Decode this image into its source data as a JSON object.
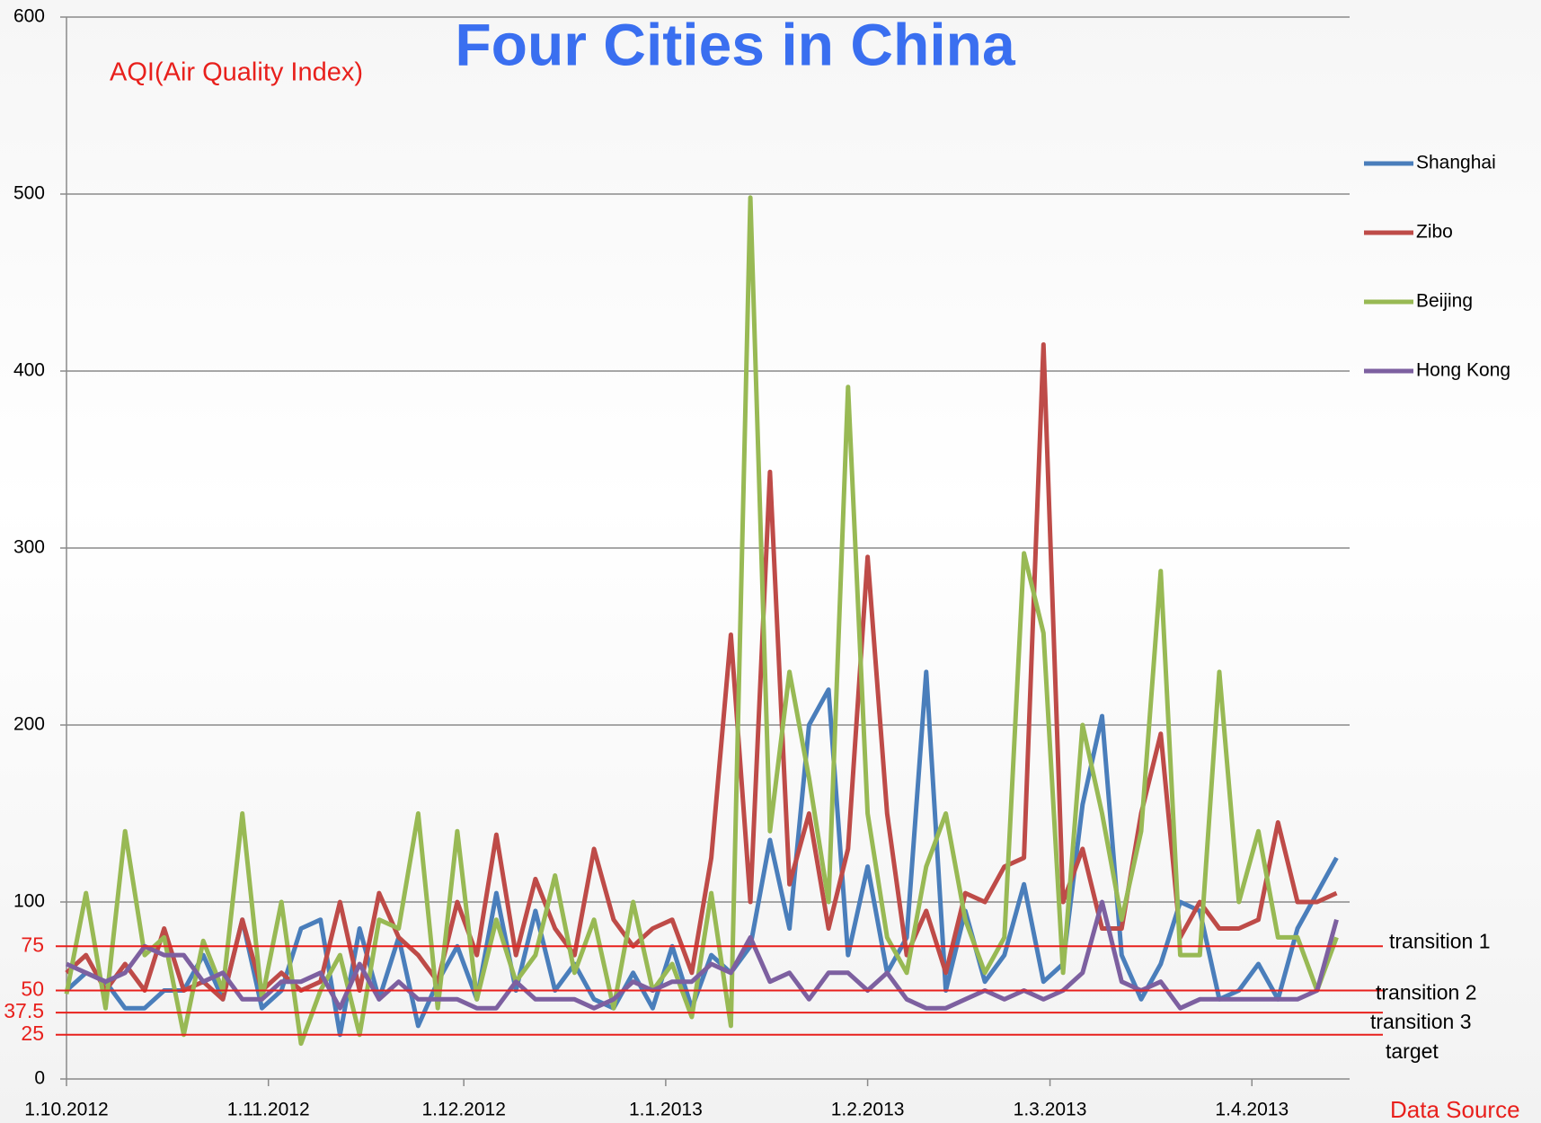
{
  "chart_data": {
    "type": "line",
    "title": "Four Cities in China",
    "y_label": "AQI(Air Quality Index)",
    "annotation": "Data Source",
    "x": [
      "1.10.2012",
      "4.10.2012",
      "7.10.2012",
      "10.10.2012",
      "13.10.2012",
      "16.10.2012",
      "19.10.2012",
      "22.10.2012",
      "25.10.2012",
      "28.10.2012",
      "31.10.2012",
      "3.11.2012",
      "6.11.2012",
      "9.11.2012",
      "12.11.2012",
      "15.11.2012",
      "18.11.2012",
      "21.11.2012",
      "24.11.2012",
      "27.11.2012",
      "30.11.2012",
      "3.12.2012",
      "6.12.2012",
      "9.12.2012",
      "12.12.2012",
      "15.12.2012",
      "18.12.2012",
      "21.12.2012",
      "24.12.2012",
      "27.12.2012",
      "30.12.2012",
      "2.1.2013",
      "5.1.2013",
      "8.1.2013",
      "11.1.2013",
      "14.1.2013",
      "17.1.2013",
      "20.1.2013",
      "23.1.2013",
      "26.1.2013",
      "29.1.2013",
      "1.2.2013",
      "4.2.2013",
      "7.2.2013",
      "10.2.2013",
      "13.2.2013",
      "16.2.2013",
      "19.2.2013",
      "22.2.2013",
      "25.2.2013",
      "28.2.2013",
      "3.3.2013",
      "6.3.2013",
      "9.3.2013",
      "12.3.2013",
      "15.3.2013",
      "18.3.2013",
      "21.3.2013",
      "24.3.2013",
      "27.3.2013",
      "30.3.2013",
      "2.4.2013",
      "5.4.2013",
      "8.4.2013",
      "11.4.2013",
      "14.4.2013"
    ],
    "series": [
      {
        "name": "Shanghai",
        "color": "#4a7ebb",
        "values": [
          50,
          60,
          55,
          40,
          40,
          50,
          50,
          70,
          45,
          90,
          40,
          50,
          85,
          90,
          25,
          85,
          45,
          80,
          30,
          55,
          75,
          45,
          105,
          50,
          95,
          50,
          65,
          45,
          40,
          60,
          40,
          75,
          40,
          70,
          60,
          75,
          135,
          85,
          200,
          220,
          70,
          120,
          60,
          80,
          230,
          50,
          95,
          55,
          70,
          110,
          55,
          65,
          155,
          205,
          70,
          45,
          65,
          100,
          95,
          45,
          50,
          65,
          45,
          85,
          105,
          125
        ]
      },
      {
        "name": "Zibo",
        "color": "#be4b48",
        "values": [
          60,
          70,
          50,
          65,
          50,
          85,
          50,
          55,
          45,
          90,
          50,
          60,
          50,
          55,
          100,
          50,
          105,
          80,
          70,
          55,
          100,
          70,
          138,
          70,
          113,
          85,
          70,
          130,
          90,
          75,
          85,
          90,
          60,
          125,
          251,
          100,
          343,
          110,
          150,
          85,
          130,
          295,
          150,
          70,
          95,
          60,
          105,
          100,
          120,
          125,
          415,
          100,
          130,
          85,
          85,
          150,
          195,
          80,
          100,
          85,
          85,
          90,
          145,
          100,
          100,
          105
        ]
      },
      {
        "name": "Beijing",
        "color": "#98b954",
        "values": [
          48,
          105,
          40,
          140,
          70,
          80,
          25,
          78,
          50,
          150,
          45,
          100,
          20,
          50,
          70,
          25,
          90,
          85,
          150,
          40,
          140,
          45,
          90,
          55,
          70,
          115,
          60,
          90,
          40,
          100,
          50,
          65,
          35,
          105,
          30,
          498,
          140,
          230,
          170,
          100,
          391,
          150,
          80,
          60,
          120,
          150,
          90,
          60,
          80,
          297,
          252,
          60,
          200,
          150,
          90,
          140,
          287,
          70,
          70,
          230,
          100,
          140,
          80,
          80,
          50,
          80
        ]
      },
      {
        "name": "Hong Kong",
        "color": "#7d60a0",
        "values": [
          65,
          60,
          55,
          60,
          75,
          70,
          70,
          55,
          60,
          45,
          45,
          55,
          55,
          60,
          40,
          65,
          45,
          55,
          45,
          45,
          45,
          40,
          40,
          55,
          45,
          45,
          45,
          40,
          45,
          55,
          50,
          55,
          55,
          65,
          60,
          80,
          55,
          60,
          45,
          60,
          60,
          50,
          60,
          45,
          40,
          40,
          45,
          50,
          45,
          50,
          45,
          50,
          60,
          100,
          55,
          50,
          55,
          40,
          45,
          45,
          45,
          45,
          45,
          45,
          50,
          90
        ]
      }
    ],
    "xlim": [
      "1.10.2012",
      "16.4.2013"
    ],
    "xticks": [
      "1.10.2012",
      "1.11.2012",
      "1.12.2012",
      "1.1.2013",
      "1.2.2013",
      "1.3.2013",
      "1.4.2013"
    ],
    "ylim": [
      0,
      600
    ],
    "yticks": [
      0,
      100,
      200,
      300,
      400,
      500,
      600
    ],
    "grid": true,
    "legend": "right",
    "reference_lines": [
      {
        "value": 75,
        "label": "transition 1"
      },
      {
        "value": 50,
        "label": "transition 2"
      },
      {
        "value": 37.5,
        "label": "transition 3"
      },
      {
        "value": 25,
        "label": "target"
      }
    ],
    "reference_color": "#e8201c"
  }
}
